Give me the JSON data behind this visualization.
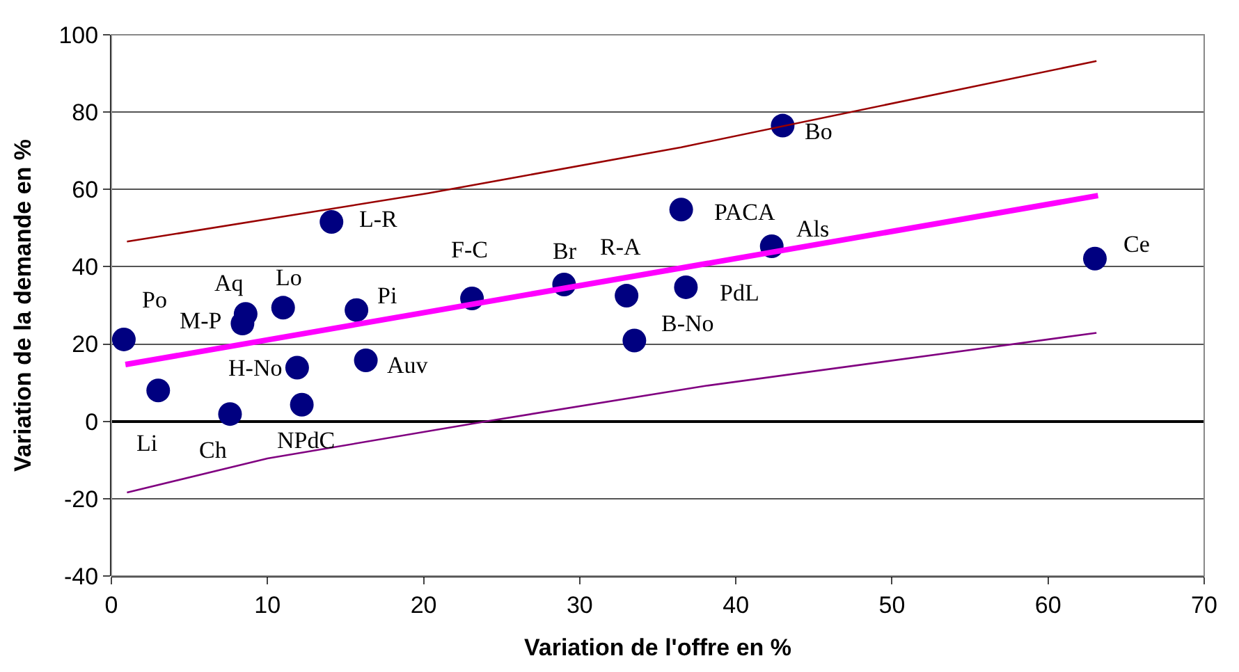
{
  "chart_data": {
    "type": "scatter",
    "xlabel": "Variation de l'offre en %",
    "ylabel": "Variation de la demande en %",
    "xlim": [
      0,
      70
    ],
    "xticks": [
      0,
      10,
      20,
      30,
      40,
      50,
      60,
      70
    ],
    "ylim": [
      -40,
      100
    ],
    "yticks": [
      -40,
      -20,
      0,
      20,
      40,
      60,
      80,
      100
    ],
    "grid": "y",
    "marker": "circle",
    "series": [
      {
        "color": "#000080",
        "x": [
          0.8,
          8.6,
          8.4,
          11.0,
          15.7,
          14.1,
          3.0,
          7.6,
          11.9,
          12.2,
          16.3,
          23.1,
          29.0,
          33.0,
          36.8,
          33.5,
          36.5,
          42.3,
          43.0,
          63.0
        ],
        "values": [
          21.2,
          27.8,
          25.3,
          29.4,
          28.8,
          51.6,
          8.0,
          1.9,
          13.9,
          4.3,
          15.8,
          31.8,
          35.4,
          32.5,
          34.7,
          20.9,
          54.8,
          45.3,
          76.5,
          42.1
        ]
      },
      {
        "type": "line",
        "marker": "none",
        "color": "#ff00ff",
        "x": [
          0.9,
          63.2
        ],
        "values": [
          14.7,
          58.4
        ]
      },
      {
        "type": "line",
        "marker": "none",
        "color": "#990000",
        "x": [
          1.0,
          20.3,
          36.5,
          63.1
        ],
        "values": [
          46.5,
          59.0,
          70.9,
          93.2
        ]
      },
      {
        "type": "line",
        "marker": "none",
        "color": "#800080",
        "x": [
          1.0,
          10.0,
          24.0,
          38.1,
          63.1
        ],
        "values": [
          -18.4,
          -9.6,
          0.0,
          9.2,
          22.9
        ]
      }
    ],
    "annotations": [
      {
        "text": "Po",
        "x": 0.8,
        "y": 21.2
      },
      {
        "text": "Aq",
        "x": 8.6,
        "y": 27.8
      },
      {
        "text": "M-P",
        "x": 8.4,
        "y": 25.3
      },
      {
        "text": "Lo",
        "x": 11.0,
        "y": 29.4
      },
      {
        "text": "Pi",
        "x": 15.7,
        "y": 28.8
      },
      {
        "text": "L-R",
        "x": 14.1,
        "y": 51.6
      },
      {
        "text": "Li",
        "x": 3.0,
        "y": 8.0
      },
      {
        "text": "Ch",
        "x": 7.6,
        "y": 1.9
      },
      {
        "text": "H-No",
        "x": 11.9,
        "y": 13.9
      },
      {
        "text": "NPdC",
        "x": 12.2,
        "y": 4.3
      },
      {
        "text": "Auv",
        "x": 16.3,
        "y": 15.8
      },
      {
        "text": "F-C",
        "x": 23.1,
        "y": 31.8
      },
      {
        "text": "Br",
        "x": 29.0,
        "y": 35.4
      },
      {
        "text": "R-A",
        "x": 33.0,
        "y": 32.5
      },
      {
        "text": "PdL",
        "x": 36.8,
        "y": 34.7
      },
      {
        "text": "B-No",
        "x": 33.5,
        "y": 20.9
      },
      {
        "text": "PACA",
        "x": 36.5,
        "y": 54.8
      },
      {
        "text": "Als",
        "x": 42.3,
        "y": 45.3
      },
      {
        "text": "Bo",
        "x": 43.0,
        "y": 76.5
      },
      {
        "text": "Ce",
        "x": 63.0,
        "y": 42.1
      }
    ]
  }
}
